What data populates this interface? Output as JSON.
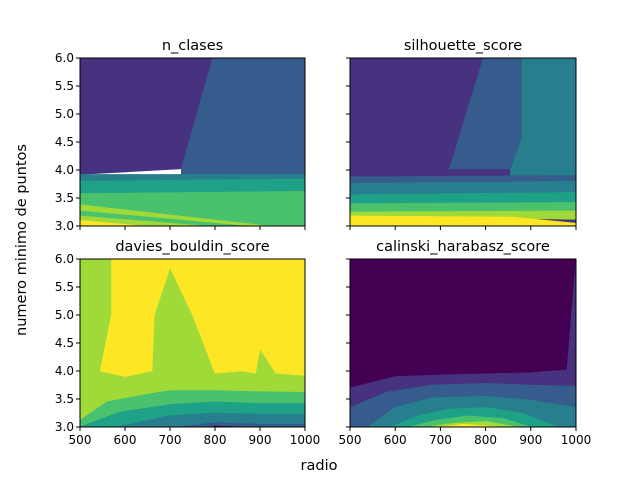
{
  "chart_data": {
    "type": "contourf",
    "layout": "2x2 grid, shared axes",
    "xlabel": "radio",
    "ylabel": "numero minimo de puntos",
    "xlim": [
      500,
      1000
    ],
    "ylim": [
      3.0,
      6.0
    ],
    "x_ticks": [
      "500",
      "600",
      "700",
      "800",
      "900",
      "1000"
    ],
    "y_ticks": [
      "3.0",
      "3.5",
      "4.0",
      "4.5",
      "5.0",
      "5.5",
      "6.0"
    ],
    "colormap": "viridis",
    "palette": [
      "#440154",
      "#46327e",
      "#365c8d",
      "#277f8e",
      "#1fa187",
      "#4ac16d",
      "#a0da39",
      "#fde725"
    ],
    "panels": [
      {
        "title": "n_clases",
        "regions": [
          {
            "level": 1,
            "polygon": [
              [
                500,
                6.0
              ],
              [
                795,
                6.0
              ],
              [
                725,
                4.02
              ],
              [
                500,
                3.92
              ]
            ]
          },
          {
            "level": 2,
            "polygon": [
              [
                795,
                6.0
              ],
              [
                1000,
                6.0
              ],
              [
                1000,
                3.92
              ],
              [
                725,
                3.92
              ],
              [
                725,
                4.02
              ]
            ]
          },
          {
            "level": 3,
            "polygon": [
              [
                500,
                3.92
              ],
              [
                1000,
                3.92
              ],
              [
                1000,
                3.84
              ],
              [
                500,
                3.8
              ]
            ]
          },
          {
            "level": 4,
            "polygon": [
              [
                500,
                3.8
              ],
              [
                1000,
                3.84
              ],
              [
                1000,
                3.62
              ],
              [
                500,
                3.58
              ]
            ]
          },
          {
            "level": 5,
            "polygon": [
              [
                500,
                3.58
              ],
              [
                1000,
                3.62
              ],
              [
                1000,
                3.0
              ],
              [
                920,
                3.0
              ],
              [
                500,
                3.38
              ]
            ]
          },
          {
            "level": 6,
            "polygon": [
              [
                500,
                3.38
              ],
              [
                920,
                3.0
              ],
              [
                500,
                3.0
              ]
            ]
          },
          {
            "level": 5,
            "polygon": [
              [
                500,
                3.27
              ],
              [
                870,
                3.0
              ],
              [
                500,
                3.0
              ]
            ]
          },
          {
            "level": 6,
            "polygon": [
              [
                500,
                3.18
              ],
              [
                780,
                3.0
              ],
              [
                500,
                3.0
              ]
            ]
          },
          {
            "level": 7,
            "polygon": [
              [
                500,
                3.1
              ],
              [
                640,
                3.0
              ],
              [
                500,
                3.0
              ]
            ]
          }
        ]
      },
      {
        "title": "silhouette_score",
        "regions": [
          {
            "level": 1,
            "polygon": [
              [
                500,
                6.0
              ],
              [
                1000,
                6.0
              ],
              [
                1000,
                3.0
              ],
              [
                500,
                3.0
              ]
            ]
          },
          {
            "level": 3,
            "polygon": [
              [
                880,
                6.0
              ],
              [
                1000,
                6.0
              ],
              [
                1000,
                3.9
              ],
              [
                855,
                3.9
              ],
              [
                855,
                4.02
              ],
              [
                880,
                4.6
              ]
            ]
          },
          {
            "level": 2,
            "polygon": [
              [
                795,
                6.0
              ],
              [
                880,
                6.0
              ],
              [
                880,
                4.6
              ],
              [
                855,
                4.02
              ],
              [
                720,
                4.02
              ]
            ]
          },
          {
            "level": 2,
            "polygon": [
              [
                500,
                3.88
              ],
              [
                1000,
                3.9
              ],
              [
                1000,
                3.8
              ],
              [
                500,
                3.76
              ]
            ]
          },
          {
            "level": 3,
            "polygon": [
              [
                500,
                3.76
              ],
              [
                1000,
                3.8
              ],
              [
                1000,
                3.6
              ],
              [
                500,
                3.56
              ]
            ]
          },
          {
            "level": 4,
            "polygon": [
              [
                500,
                3.56
              ],
              [
                1000,
                3.6
              ],
              [
                1000,
                3.42
              ],
              [
                500,
                3.4
              ]
            ]
          },
          {
            "level": 5,
            "polygon": [
              [
                500,
                3.4
              ],
              [
                1000,
                3.42
              ],
              [
                1000,
                3.27
              ],
              [
                500,
                3.25
              ]
            ]
          },
          {
            "level": 6,
            "polygon": [
              [
                500,
                3.25
              ],
              [
                1000,
                3.27
              ],
              [
                1000,
                3.12
              ],
              [
                500,
                3.18
              ]
            ]
          },
          {
            "level": 7,
            "polygon": [
              [
                500,
                3.18
              ],
              [
                860,
                3.16
              ],
              [
                1000,
                3.05
              ],
              [
                1000,
                3.0
              ],
              [
                500,
                3.0
              ]
            ]
          }
        ]
      },
      {
        "title": "davies_bouldin_score",
        "regions": [
          {
            "level": 6,
            "polygon": [
              [
                500,
                6.0
              ],
              [
                1000,
                6.0
              ],
              [
                1000,
                3.0
              ],
              [
                500,
                3.0
              ]
            ]
          },
          {
            "level": 7,
            "polygon": [
              [
                570,
                6.0
              ],
              [
                1000,
                6.0
              ],
              [
                1000,
                3.92
              ],
              [
                935,
                3.96
              ],
              [
                900,
                4.4
              ],
              [
                890,
                3.96
              ],
              [
                860,
                4.0
              ],
              [
                800,
                3.96
              ],
              [
                750,
                5.0
              ],
              [
                700,
                5.85
              ],
              [
                665,
                5.0
              ],
              [
                660,
                4.0
              ],
              [
                600,
                3.9
              ],
              [
                545,
                4.0
              ],
              [
                570,
                5.0
              ]
            ]
          },
          {
            "level": 5,
            "polygon": [
              [
                500,
                3.12
              ],
              [
                560,
                3.45
              ],
              [
                645,
                3.58
              ],
              [
                700,
                3.65
              ],
              [
                800,
                3.65
              ],
              [
                900,
                3.63
              ],
              [
                1000,
                3.62
              ],
              [
                1000,
                3.0
              ],
              [
                500,
                3.0
              ]
            ]
          },
          {
            "level": 4,
            "polygon": [
              [
                500,
                3.0
              ],
              [
                590,
                3.27
              ],
              [
                700,
                3.4
              ],
              [
                800,
                3.45
              ],
              [
                900,
                3.42
              ],
              [
                1000,
                3.42
              ],
              [
                1000,
                3.0
              ]
            ]
          },
          {
            "level": 3,
            "polygon": [
              [
                580,
                3.0
              ],
              [
                700,
                3.2
              ],
              [
                800,
                3.25
              ],
              [
                900,
                3.23
              ],
              [
                1000,
                3.22
              ],
              [
                1000,
                3.0
              ]
            ]
          },
          {
            "level": 2,
            "polygon": [
              [
                720,
                3.0
              ],
              [
                800,
                3.08
              ],
              [
                900,
                3.05
              ],
              [
                1000,
                3.05
              ],
              [
                1000,
                3.0
              ]
            ]
          },
          {
            "level": 0,
            "polygon": [
              [
                790,
                3.0
              ],
              [
                800,
                3.02
              ],
              [
                860,
                3.0
              ]
            ]
          }
        ]
      },
      {
        "title": "calinski_harabasz_score",
        "regions": [
          {
            "level": 0,
            "polygon": [
              [
                500,
                6.0
              ],
              [
                1000,
                6.0
              ],
              [
                1000,
                3.0
              ],
              [
                500,
                3.0
              ]
            ]
          },
          {
            "level": 1,
            "polygon": [
              [
                500,
                3.7
              ],
              [
                600,
                3.9
              ],
              [
                700,
                3.93
              ],
              [
                800,
                3.95
              ],
              [
                900,
                3.97
              ],
              [
                980,
                4.02
              ],
              [
                1000,
                6.0
              ],
              [
                1000,
                3.0
              ],
              [
                500,
                3.0
              ]
            ]
          },
          {
            "level": 2,
            "polygon": [
              [
                500,
                3.35
              ],
              [
                580,
                3.62
              ],
              [
                680,
                3.75
              ],
              [
                800,
                3.78
              ],
              [
                900,
                3.75
              ],
              [
                1000,
                3.73
              ],
              [
                1000,
                3.0
              ],
              [
                500,
                3.0
              ]
            ]
          },
          {
            "level": 3,
            "polygon": [
              [
                540,
                3.0
              ],
              [
                600,
                3.35
              ],
              [
                680,
                3.52
              ],
              [
                800,
                3.55
              ],
              [
                900,
                3.48
              ],
              [
                1000,
                3.35
              ],
              [
                1000,
                3.0
              ]
            ]
          },
          {
            "level": 4,
            "polygon": [
              [
                590,
                3.0
              ],
              [
                650,
                3.2
              ],
              [
                720,
                3.32
              ],
              [
                800,
                3.35
              ],
              [
                880,
                3.25
              ],
              [
                960,
                3.0
              ]
            ]
          },
          {
            "level": 5,
            "polygon": [
              [
                630,
                3.0
              ],
              [
                690,
                3.12
              ],
              [
                760,
                3.2
              ],
              [
                840,
                3.15
              ],
              [
                900,
                3.0
              ]
            ]
          },
          {
            "level": 6,
            "polygon": [
              [
                670,
                3.0
              ],
              [
                730,
                3.07
              ],
              [
                800,
                3.1
              ],
              [
                870,
                3.0
              ]
            ]
          },
          {
            "level": 7,
            "polygon": [
              [
                700,
                3.0
              ],
              [
                750,
                3.05
              ],
              [
                840,
                3.0
              ]
            ]
          }
        ]
      }
    ]
  }
}
